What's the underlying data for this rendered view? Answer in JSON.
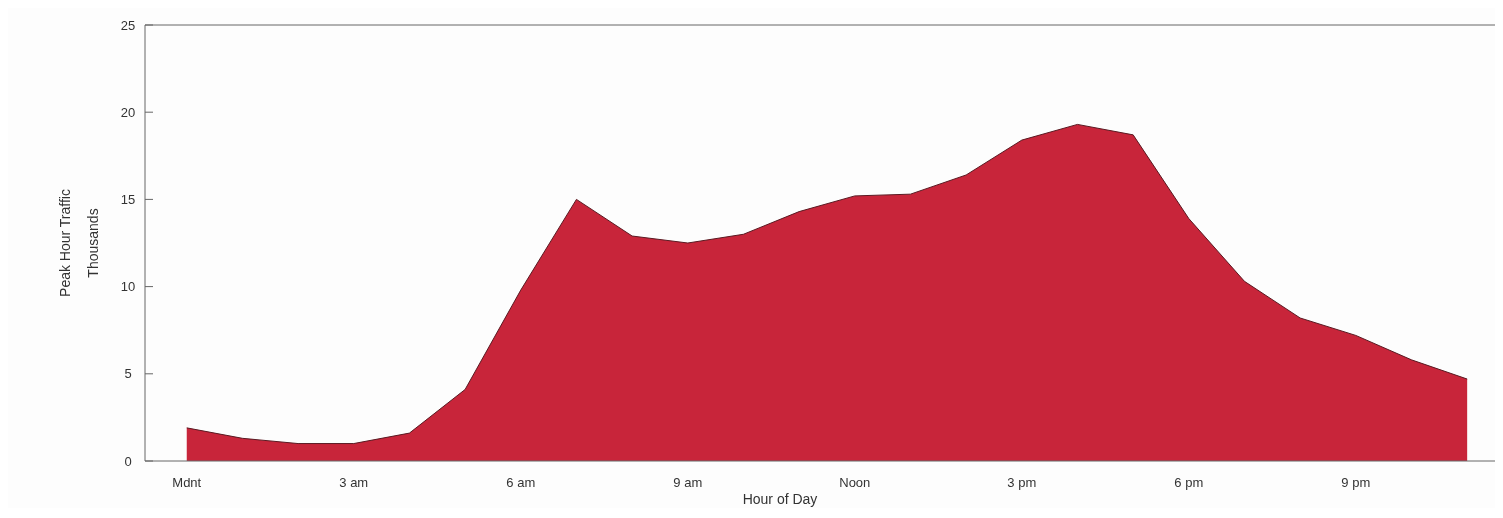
{
  "chart_data": {
    "type": "area",
    "xlabel": "Hour of Day",
    "ylabel": "Peak Hour Traffic",
    "subtitle": "Thousands",
    "categories": [
      "Mdnt",
      null,
      null,
      "3 am",
      null,
      null,
      "6 am",
      null,
      null,
      "9 am",
      null,
      null,
      "Noon",
      null,
      null,
      "3 pm",
      null,
      null,
      "6 pm",
      null,
      null,
      "9 pm",
      null,
      null
    ],
    "values": [
      1.9,
      1.3,
      1.0,
      1.0,
      1.6,
      4.1,
      9.8,
      15.0,
      12.9,
      12.5,
      13.0,
      14.3,
      15.2,
      15.3,
      16.4,
      18.4,
      19.3,
      18.7,
      13.9,
      10.3,
      8.2,
      7.2,
      5.8,
      4.7
    ],
    "color": "#c8253a",
    "ylim": [
      0,
      25
    ],
    "yticks": [
      0,
      5,
      10,
      15,
      20,
      25
    ],
    "grid": false
  }
}
